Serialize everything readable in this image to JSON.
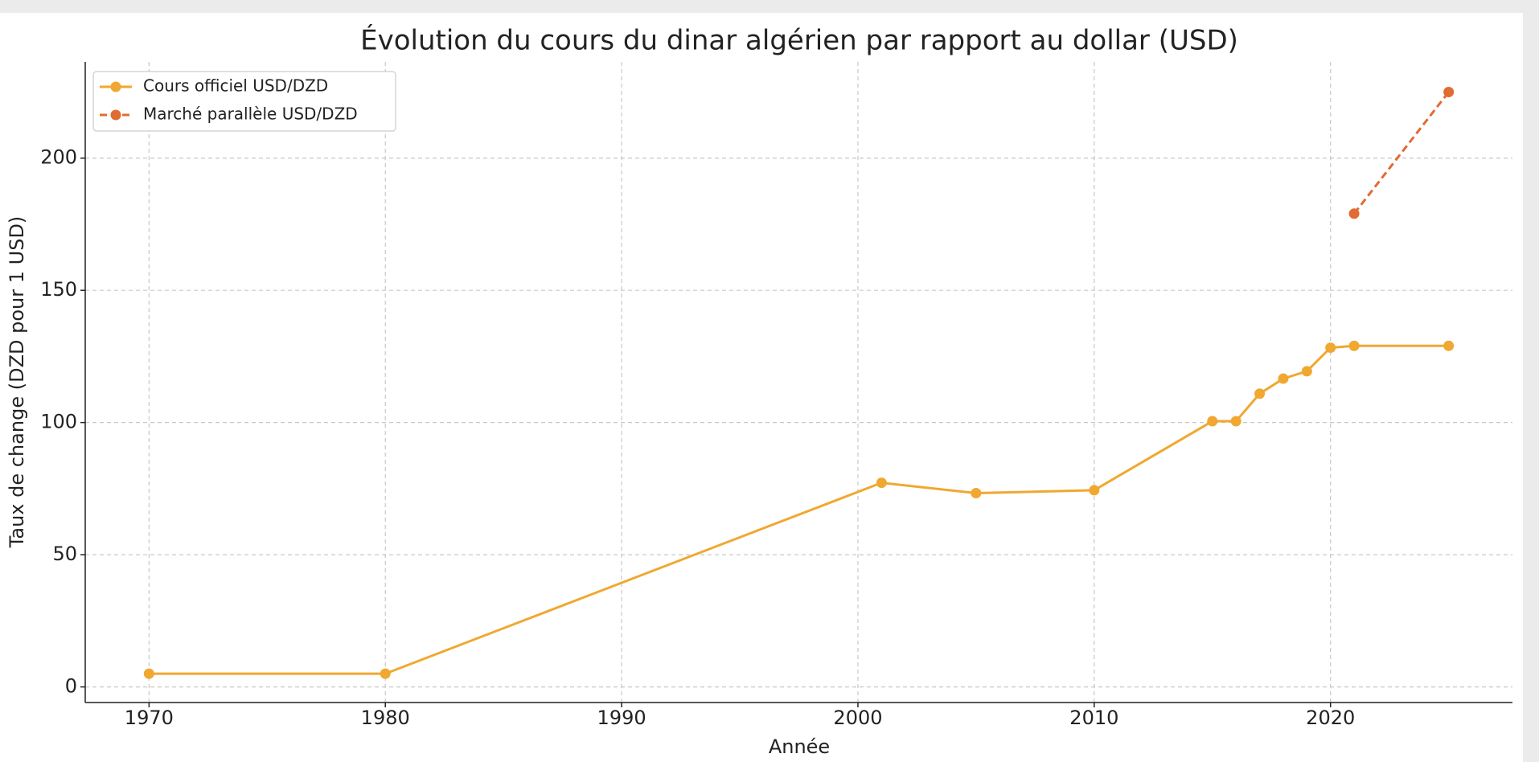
{
  "chart_data": {
    "type": "line",
    "title": "Évolution du cours du dinar algérien par rapport au dollar (USD)",
    "xlabel": "Année",
    "ylabel": "Taux de change (DZD pour 1 USD)",
    "series": [
      {
        "name": "Cours officiel USD/DZD",
        "color": "#f0a830",
        "linestyle": "solid",
        "x": [
          1970,
          1980,
          2001,
          2005,
          2010,
          2015,
          2016,
          2017,
          2018,
          2019,
          2020,
          2021,
          2025
        ],
        "values": [
          5,
          5,
          77.2,
          73.3,
          74.4,
          100.5,
          100.5,
          110.9,
          116.6,
          119.4,
          128.3,
          129,
          129
        ]
      },
      {
        "name": "Marché parallèle USD/DZD",
        "color": "#e06c32",
        "linestyle": "dashed",
        "x": [
          2021,
          2025
        ],
        "values": [
          179,
          225
        ]
      }
    ],
    "xlim": [
      1967.3,
      2027.7
    ],
    "xticks": [
      1970,
      1980,
      1990,
      2000,
      2010,
      2020
    ],
    "ylim": [
      -5.9,
      236.4
    ],
    "yticks": [
      0,
      50,
      100,
      150,
      200
    ],
    "grid": true,
    "legend": "upper left"
  }
}
